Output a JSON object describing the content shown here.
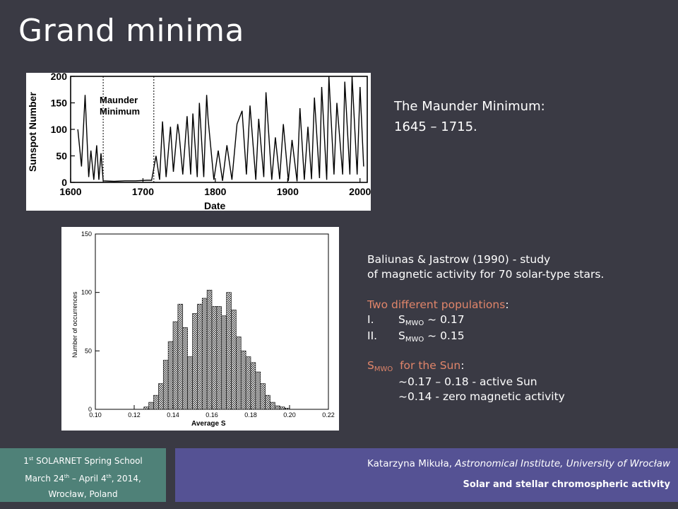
{
  "slide": {
    "title": "Grand minima"
  },
  "sunspot": {
    "ylabel": "Sunspot Number",
    "xlabel": "Date",
    "annotation_line1": "Maunder",
    "annotation_line2": "Minimum"
  },
  "maunder": {
    "line1": "The Maunder Minimum:",
    "line2": "1645 – 1715."
  },
  "histogram": {
    "ylabel": "Number of occurrences",
    "xlabel": "Average S"
  },
  "study": {
    "line1": "Baliunas & Jastrow (1990) - study",
    "line2": "of magnetic activity for 70 solar-type stars.",
    "populations_label": "Two different populations",
    "colon": ":",
    "item1_num": "I.",
    "item1_text": "S",
    "item1_sub": "MWO",
    "item1_value": " ~ 0.17",
    "item2_num": "II.",
    "item2_text": "S",
    "item2_sub": "MWO",
    "item2_value": " ~ 0.15",
    "sun_s": "S",
    "sun_sub": "MWO",
    "sun_label": "  for the Sun",
    "sun_line1": "~0.17 – 0.18  - active Sun",
    "sun_line2": "~0.14  - zero magnetic activity"
  },
  "footer": {
    "school_sup": "st",
    "school_num": "1",
    "school_name": " SOLARNET Spring School",
    "date_pre": "March 24",
    "date_sup1": "th",
    "date_mid": " – April 4",
    "date_sup2": "th",
    "date_post": ", 2014,",
    "place": "Wrocław, Poland",
    "author": "Katarzyna Mikuła, ",
    "affiliation": "Astronomical Institute, University of Wrocław",
    "topic": "Solar and stellar chromospheric activity"
  },
  "chart_data": [
    {
      "type": "line",
      "ylabel": "Sunspot Number",
      "xlabel": "Date",
      "xlim": [
        1600,
        2010
      ],
      "ylim": [
        0,
        200
      ],
      "xticks": [
        1600,
        1700,
        1800,
        1900,
        2000
      ],
      "yticks": [
        0,
        50,
        100,
        150,
        200
      ],
      "annotation": "Maunder Minimum",
      "maunder_bounds": [
        1645,
        1715
      ],
      "x": [
        1610,
        1615,
        1620,
        1625,
        1628,
        1632,
        1636,
        1639,
        1642,
        1645,
        1660,
        1675,
        1690,
        1705,
        1712,
        1718,
        1723,
        1727,
        1732,
        1738,
        1742,
        1748,
        1750,
        1755,
        1761,
        1766,
        1769,
        1775,
        1778,
        1784,
        1788,
        1790,
        1798,
        1804,
        1810,
        1816,
        1823,
        1830,
        1837,
        1843,
        1848,
        1856,
        1860,
        1867,
        1870,
        1878,
        1883,
        1889,
        1894,
        1901,
        1906,
        1913,
        1917,
        1923,
        1928,
        1933,
        1937,
        1944,
        1947,
        1954,
        1957,
        1964,
        1968,
        1976,
        1979,
        1986,
        1989,
        1996,
        2000,
        2005
      ],
      "values": [
        100,
        30,
        165,
        10,
        60,
        5,
        70,
        5,
        55,
        3,
        2,
        3,
        3,
        4,
        4,
        50,
        5,
        115,
        10,
        105,
        20,
        110,
        90,
        15,
        125,
        15,
        130,
        10,
        150,
        10,
        165,
        120,
        5,
        60,
        3,
        70,
        5,
        110,
        135,
        15,
        145,
        5,
        120,
        10,
        170,
        5,
        85,
        6,
        110,
        3,
        80,
        2,
        140,
        5,
        105,
        6,
        160,
        8,
        180,
        5,
        225,
        15,
        150,
        15,
        190,
        15,
        210,
        15,
        180,
        30
      ]
    },
    {
      "type": "bar",
      "ylabel": "Number of occurrences",
      "xlabel": "Average S",
      "xlim": [
        0.1,
        0.22
      ],
      "ylim": [
        0,
        150
      ],
      "xticks": [
        0.1,
        0.12,
        0.14,
        0.16,
        0.18,
        0.2,
        0.22
      ],
      "yticks": [
        0,
        50,
        100,
        150
      ],
      "bin_width": 0.0025,
      "categories": [
        0.1275,
        0.13,
        0.1325,
        0.135,
        0.1375,
        0.14,
        0.1425,
        0.145,
        0.1475,
        0.15,
        0.1525,
        0.155,
        0.1575,
        0.16,
        0.1625,
        0.165,
        0.1675,
        0.17,
        0.1725,
        0.175,
        0.1775,
        0.18,
        0.1825,
        0.185,
        0.1875,
        0.19,
        0.1925,
        0.195,
        0.1975,
        0.2
      ],
      "values": [
        2,
        6,
        12,
        22,
        42,
        58,
        75,
        90,
        70,
        45,
        82,
        90,
        95,
        102,
        88,
        88,
        80,
        100,
        85,
        62,
        50,
        45,
        40,
        32,
        22,
        12,
        6,
        3,
        2,
        1
      ]
    }
  ]
}
